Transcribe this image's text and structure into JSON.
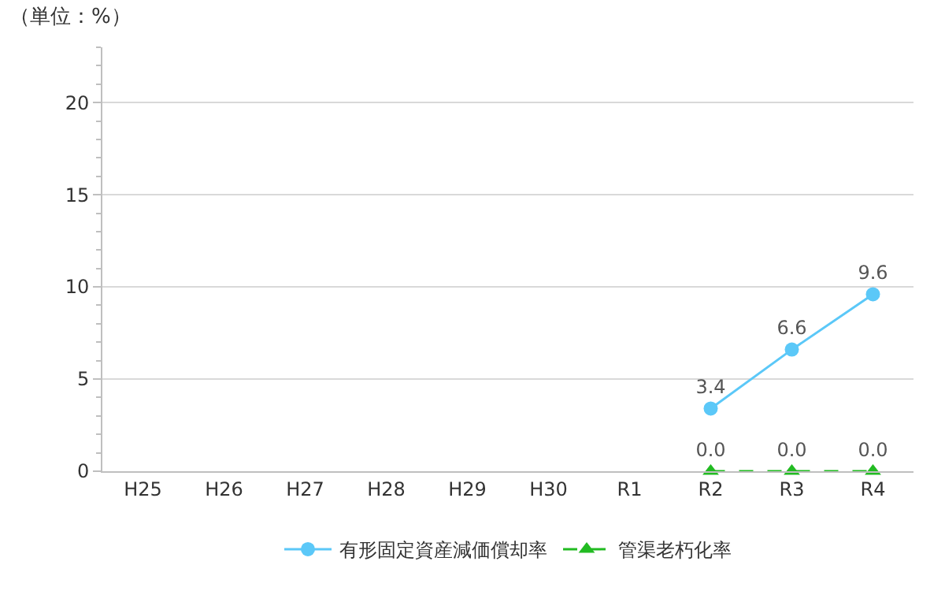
{
  "chart_data": {
    "type": "line",
    "title": "（単位：%）",
    "categories": [
      "H25",
      "H26",
      "H27",
      "H28",
      "H29",
      "H30",
      "R1",
      "R2",
      "R3",
      "R4"
    ],
    "series": [
      {
        "name": "有形固定資産減価償却率",
        "color": "#5bc8f8",
        "marker": "circle",
        "line_style": "solid",
        "values": [
          null,
          null,
          null,
          null,
          null,
          null,
          null,
          3.4,
          6.6,
          9.6
        ],
        "value_labels": [
          null,
          null,
          null,
          null,
          null,
          null,
          null,
          "3.4",
          "6.6",
          "9.6"
        ]
      },
      {
        "name": "管渠老朽化率",
        "color": "#22bb22",
        "marker": "triangle",
        "line_style": "dashed",
        "values": [
          null,
          null,
          null,
          null,
          null,
          null,
          null,
          0,
          0,
          0
        ],
        "value_labels": [
          null,
          null,
          null,
          null,
          null,
          null,
          null,
          "0.0",
          "0.0",
          "0.0"
        ]
      }
    ],
    "ylim": [
      0,
      23
    ],
    "yticks": [
      0,
      {
        "value": 1,
        "label": null
      },
      {
        "value": 2,
        "label": null
      },
      {
        "value": 3,
        "label": null
      },
      {
        "value": 4,
        "label": null
      },
      5,
      {
        "value": 6,
        "label": null
      },
      {
        "value": 7,
        "label": null
      },
      {
        "value": 8,
        "label": null
      },
      {
        "value": 9,
        "label": null
      },
      10,
      {
        "value": 11,
        "label": null
      },
      {
        "value": 12,
        "label": null
      },
      {
        "value": 13,
        "label": null
      },
      {
        "value": 14,
        "label": null
      },
      15,
      {
        "value": 16,
        "label": null
      },
      {
        "value": 17,
        "label": null
      },
      {
        "value": 18,
        "label": null
      },
      {
        "value": 19,
        "label": null
      },
      20,
      {
        "value": 21,
        "label": null
      },
      {
        "value": 22,
        "label": null
      },
      {
        "value": 23,
        "label": null
      }
    ],
    "grid": "y",
    "legend": "bottom"
  }
}
